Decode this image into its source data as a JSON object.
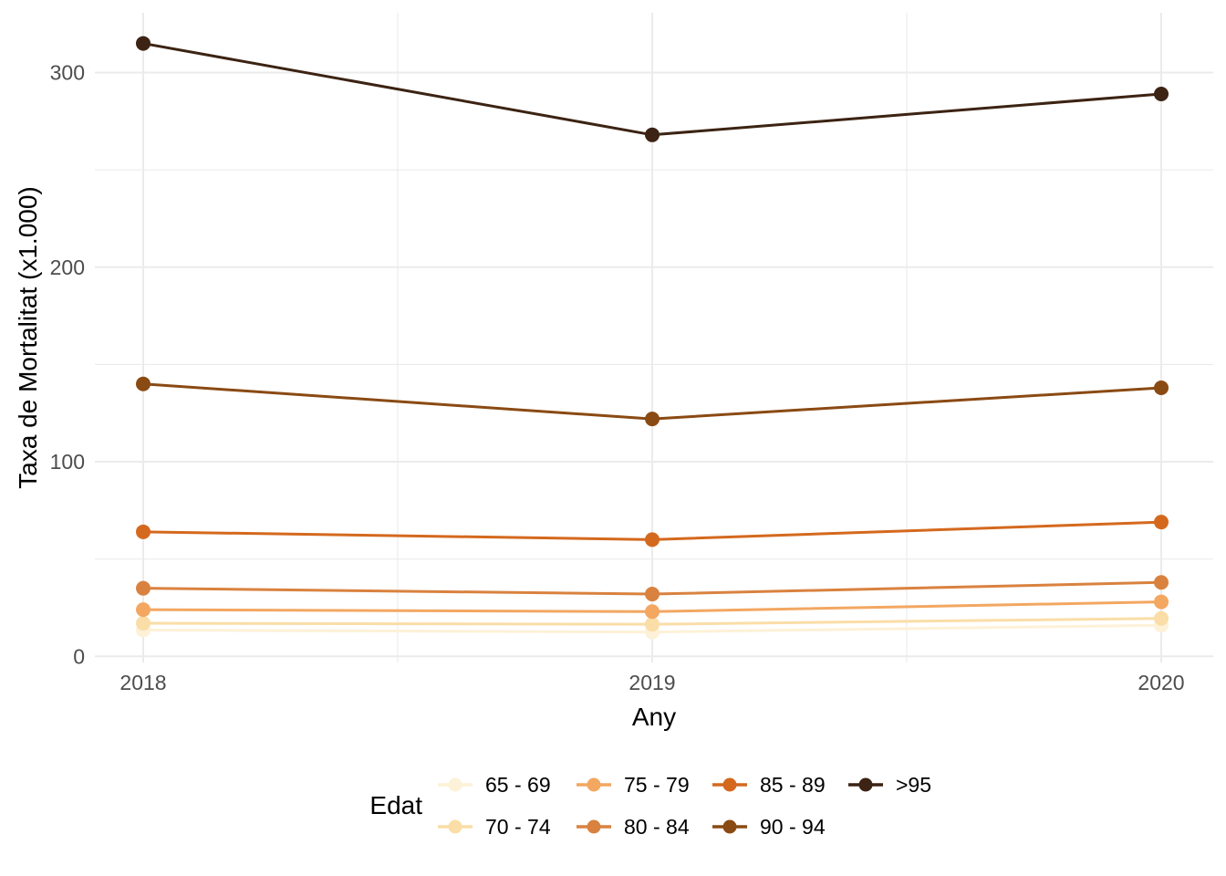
{
  "figure": {
    "background_color": "#FFFFFF"
  },
  "chart_data": {
    "type": "line",
    "title": "",
    "xlabel": "Any",
    "ylabel": "Taxa de Mortalitat (x1.000)",
    "legend_title": "Edat",
    "legend_position": "bottom",
    "legend_rows": 2,
    "grid": true,
    "x": [
      2018,
      2019,
      2020
    ],
    "x_tick_labels": [
      "2018",
      "2019",
      "2020"
    ],
    "y_major_ticks": [
      0,
      100,
      200,
      300
    ],
    "y_minor_gridlines": [
      50,
      150,
      250
    ],
    "ylim": [
      -4,
      332
    ],
    "axis_text_color": "#4D4D4D",
    "axis_title_color": "#000000",
    "gridline_color": "#EBEBEB",
    "marker": "circle",
    "series": [
      {
        "name": "65 - 69",
        "color": "#FDF1D7",
        "values": [
          13.5,
          12.5,
          16
        ]
      },
      {
        "name": "70 - 74",
        "color": "#FADDA7",
        "values": [
          17,
          16.5,
          19.5
        ]
      },
      {
        "name": "75 - 79",
        "color": "#F3A761",
        "values": [
          24,
          23,
          28
        ]
      },
      {
        "name": "80 - 84",
        "color": "#D9823F",
        "values": [
          35,
          32,
          38
        ]
      },
      {
        "name": "85 - 89",
        "color": "#D4691E",
        "values": [
          64,
          60,
          69
        ]
      },
      {
        "name": "90 - 94",
        "color": "#8A4A13",
        "values": [
          140,
          122,
          138
        ]
      },
      {
        "name": ">95",
        "color": "#3C2313",
        "values": [
          315,
          268,
          289
        ]
      }
    ]
  }
}
